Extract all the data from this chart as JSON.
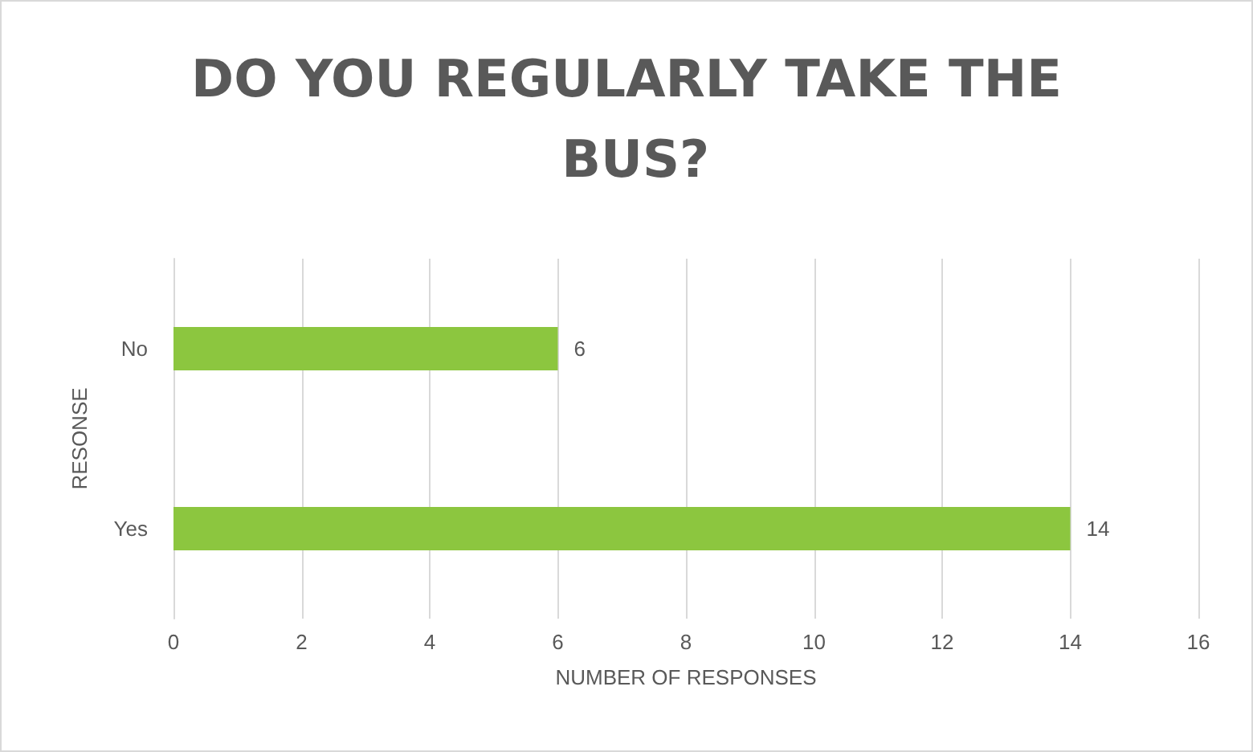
{
  "chart_data": {
    "type": "bar",
    "orientation": "horizontal",
    "title": "DO YOU REGULARLY TAKE THE BUS?",
    "xlabel": "NUMBER OF RESPONSES",
    "ylabel": "RESONSE",
    "categories": [
      "No",
      "Yes"
    ],
    "values": [
      6,
      14
    ],
    "color": "#8cc63f",
    "xlim": [
      0,
      16
    ],
    "xticks": [
      0,
      2,
      4,
      6,
      8,
      10,
      12,
      14,
      16
    ],
    "grid": "x",
    "data_labels": true
  }
}
